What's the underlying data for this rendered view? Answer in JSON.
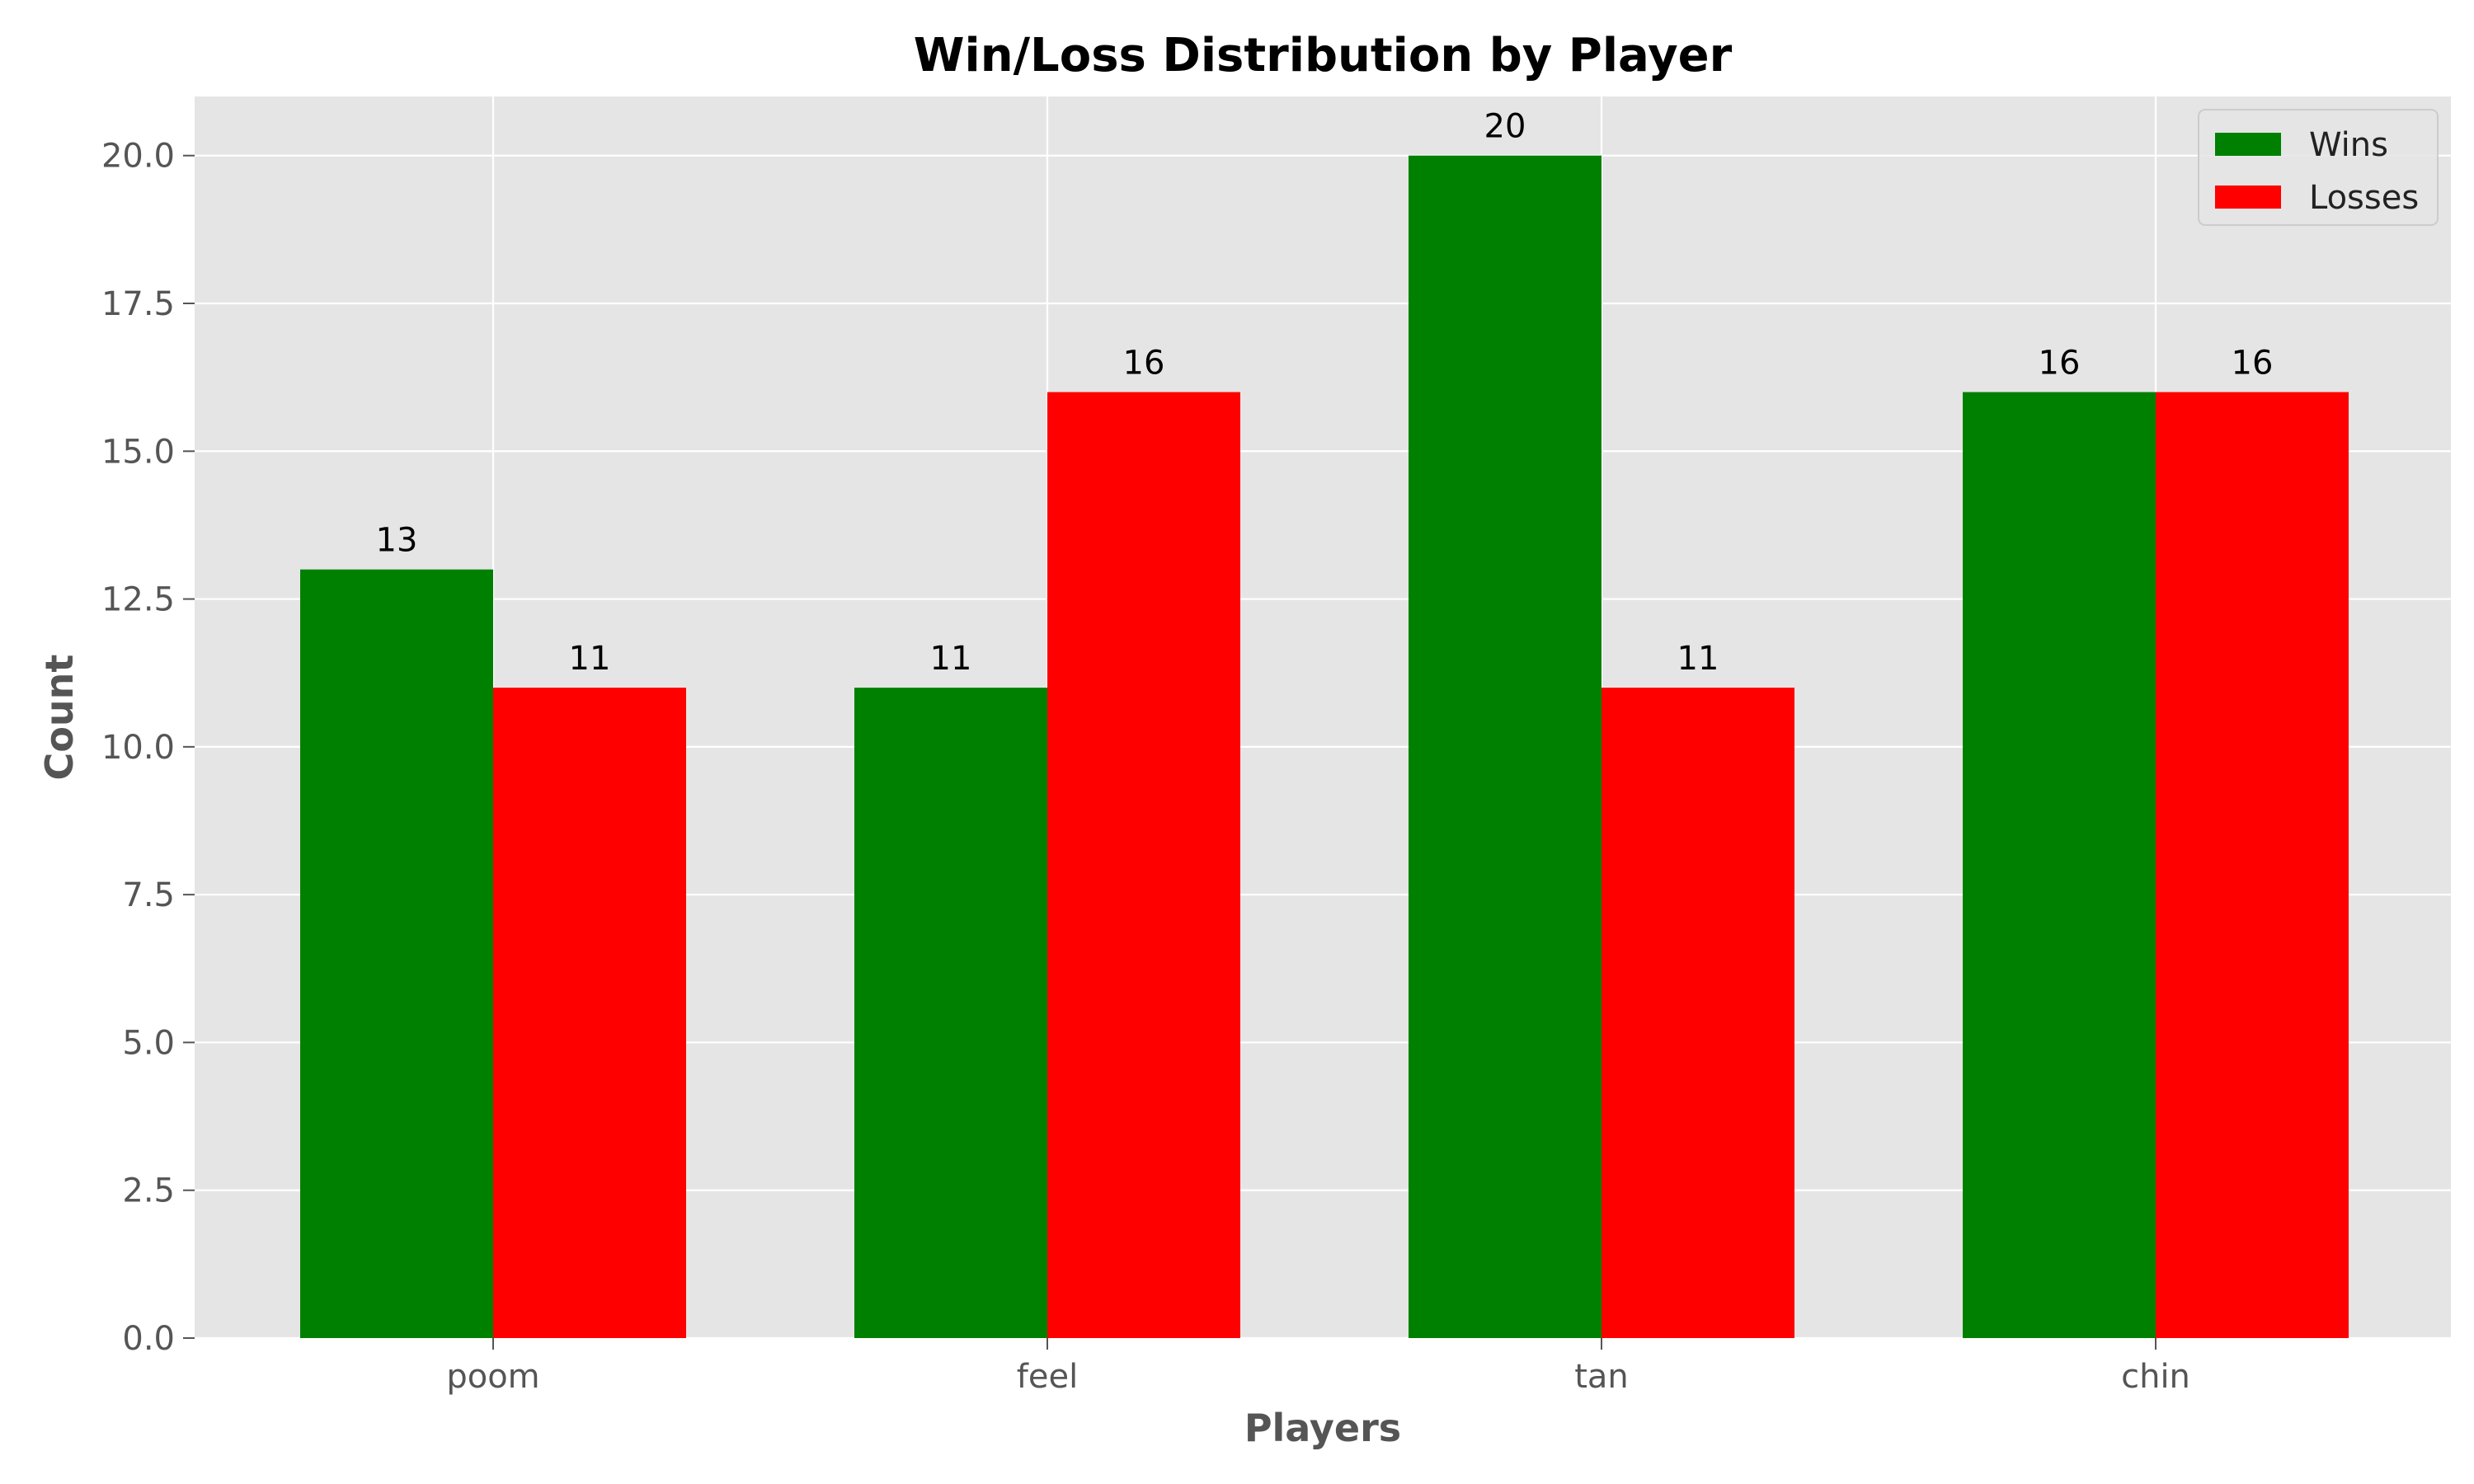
{
  "chart_data": {
    "type": "bar",
    "title": "Win/Loss Distribution by Player",
    "xlabel": "Players",
    "ylabel": "Count",
    "categories": [
      "poom",
      "feel",
      "tan",
      "chin"
    ],
    "series": [
      {
        "name": "Wins",
        "values": [
          13,
          11,
          20,
          16
        ],
        "color": "#008000"
      },
      {
        "name": "Losses",
        "values": [
          11,
          16,
          11,
          16
        ],
        "color": "#ff0000"
      }
    ],
    "ylim": [
      0,
      21
    ],
    "yticks": [
      0,
      2.5,
      5,
      7.5,
      10,
      12.5,
      15,
      17.5,
      20
    ],
    "ytick_labels": [
      "0.0",
      "2.5",
      "5.0",
      "7.5",
      "10.0",
      "12.5",
      "15.0",
      "17.5",
      "20.0"
    ],
    "grid": true,
    "legend_position": "top-right",
    "background_color": "#e5e5e5",
    "grid_color": "#ffffff"
  }
}
